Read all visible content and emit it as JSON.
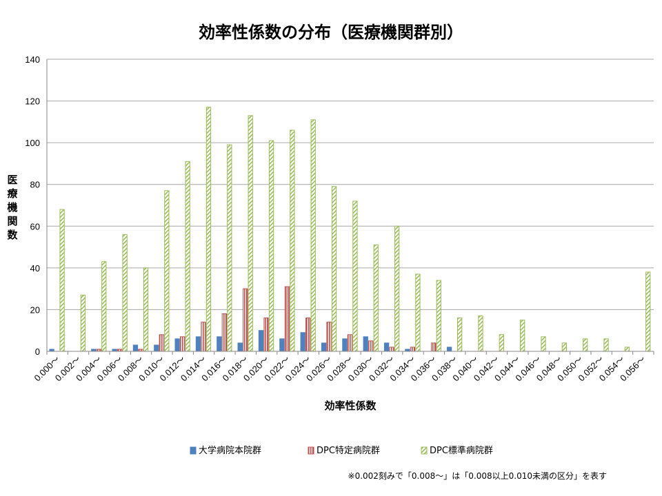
{
  "chart_data": {
    "type": "bar",
    "title": "効率性係数の分布（医療機関群別）",
    "xlabel": "効率性係数",
    "ylabel": "医療機関数",
    "ylim": [
      0,
      140
    ],
    "yticks": [
      0,
      20,
      40,
      60,
      80,
      100,
      120,
      140
    ],
    "grid": true,
    "legend_placement": "bottom",
    "categories": [
      "0.000～",
      "0.002～",
      "0.004～",
      "0.006～",
      "0.008～",
      "0.010～",
      "0.012～",
      "0.014～",
      "0.016～",
      "0.018～",
      "0.020～",
      "0.022～",
      "0.024～",
      "0.026～",
      "0.028～",
      "0.030～",
      "0.032～",
      "0.034～",
      "0.036～",
      "0.038～",
      "0.040～",
      "0.042～",
      "0.044～",
      "0.046～",
      "0.048～",
      "0.050～",
      "0.052～",
      "0.054～",
      "0.056～"
    ],
    "series": [
      {
        "name": "大学病院本院群",
        "color": "#4f81bd",
        "pattern": "solid",
        "values": [
          1,
          0,
          1,
          1,
          3,
          3,
          6,
          7,
          7,
          4,
          10,
          6,
          9,
          4,
          6,
          7,
          4,
          1,
          0,
          2,
          0,
          0,
          0,
          0,
          0,
          0,
          0,
          0,
          0
        ]
      },
      {
        "name": "DPC特定病院群",
        "color": "#c0504d",
        "pattern": "vertical-lines",
        "values": [
          0,
          0,
          1,
          1,
          1,
          8,
          7,
          14,
          18,
          30,
          16,
          31,
          16,
          14,
          8,
          5,
          2,
          2,
          4,
          0,
          0,
          0,
          0,
          0,
          0,
          0,
          0,
          0,
          0
        ]
      },
      {
        "name": "DPC標準病院群",
        "color": "#9bbb59",
        "pattern": "diagonal-lines",
        "values": [
          68,
          27,
          43,
          56,
          40,
          77,
          91,
          117,
          99,
          113,
          101,
          106,
          111,
          79,
          72,
          51,
          60,
          37,
          34,
          16,
          17,
          8,
          15,
          7,
          4,
          6,
          6,
          2,
          38
        ]
      }
    ]
  },
  "note": "※0.002刻みで「0.008～」は「0.008以上0.010未満の区分」を表す"
}
